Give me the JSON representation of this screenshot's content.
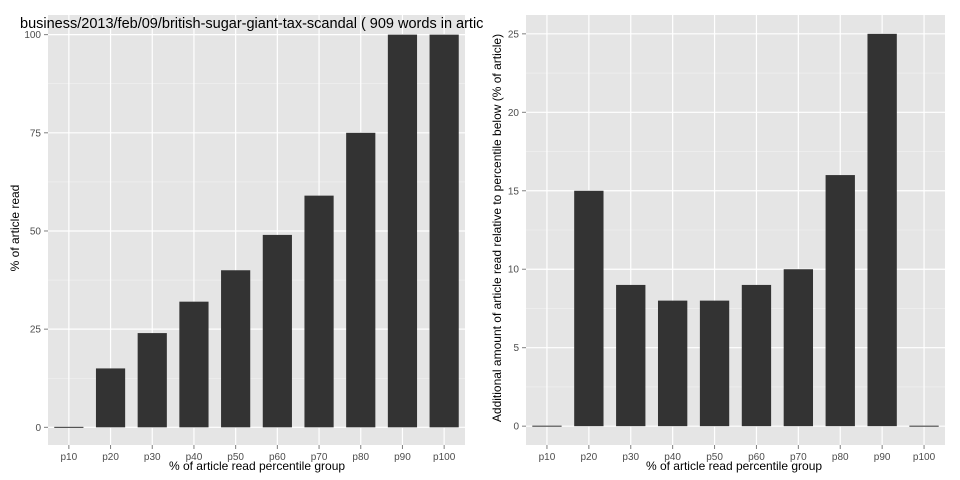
{
  "chart_data": [
    {
      "type": "bar",
      "title": "business/2013/feb/09/british-sugar-giant-tax-scandal ( 909 words in artic",
      "xlabel": "% of article read percentile group",
      "ylabel": "% of article read",
      "categories": [
        "p10",
        "p20",
        "p30",
        "p40",
        "p50",
        "p60",
        "p70",
        "p80",
        "p90",
        "p100"
      ],
      "values": [
        0,
        15,
        24,
        32,
        40,
        49,
        59,
        75,
        100,
        100
      ],
      "ylim": [
        -4.5,
        105
      ],
      "yticks": [
        0,
        25,
        50,
        75,
        100
      ],
      "grid": true,
      "colors": {
        "panel": "#e5e5e5",
        "bar": "#333333",
        "grid_major": "#ffffff",
        "grid_minor": "#f2f2f2"
      }
    },
    {
      "type": "bar",
      "title": "",
      "xlabel": "% of article read percentile group",
      "ylabel": "Additional amount of article read relative to percentile below (% of article)",
      "categories": [
        "p10",
        "p20",
        "p30",
        "p40",
        "p50",
        "p60",
        "p70",
        "p80",
        "p90",
        "p100"
      ],
      "values": [
        0,
        15,
        9,
        8,
        8,
        9,
        10,
        16,
        25,
        0
      ],
      "ylim": [
        -1.2,
        26.2
      ],
      "yticks": [
        0,
        5,
        10,
        15,
        20,
        25
      ],
      "grid": true,
      "colors": {
        "panel": "#e5e5e5",
        "bar": "#333333",
        "grid_major": "#ffffff",
        "grid_minor": "#f2f2f2"
      }
    }
  ]
}
